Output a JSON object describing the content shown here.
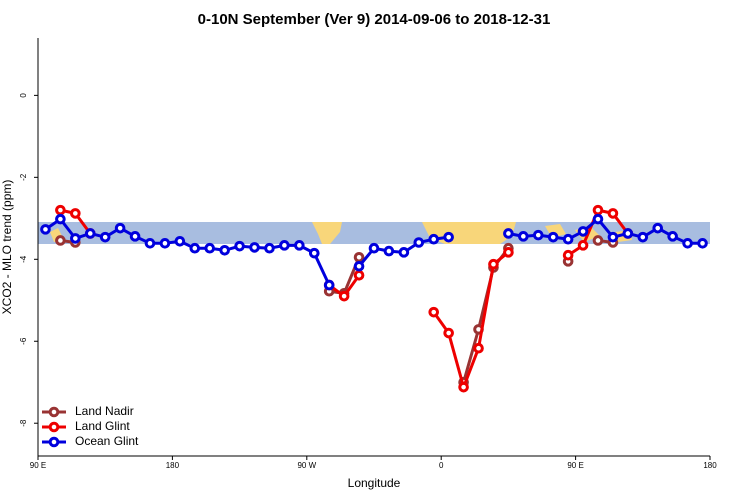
{
  "chart_data": {
    "type": "line",
    "title": "0-10N September (Ver 9)   2014-09-06 to 2018-12-31",
    "x_label": "Longitude",
    "y_label": "XCO2 - MLO trend (ppm)",
    "x": [
      95,
      105,
      115,
      125,
      135,
      145,
      155,
      165,
      175,
      185,
      195,
      205,
      215,
      225,
      235,
      245,
      255,
      265,
      275,
      285,
      295,
      305,
      315,
      325,
      335,
      345,
      355,
      365,
      375,
      385,
      395,
      405,
      415,
      425,
      435,
      445,
      455,
      465,
      475,
      485,
      495,
      505,
      515,
      525,
      535
    ],
    "xlim": [
      90,
      540
    ],
    "xticks": [
      {
        "value": 90,
        "label": "90 E"
      },
      {
        "value": 180,
        "label": "180"
      },
      {
        "value": 270,
        "label": "90 W"
      },
      {
        "value": 360,
        "label": "0"
      },
      {
        "value": 450,
        "label": "90 E"
      },
      {
        "value": 540,
        "label": "180"
      }
    ],
    "ylim": [
      -8.8,
      1.4
    ],
    "yticks": [
      0,
      -2,
      -4,
      -6,
      -8
    ],
    "legend": "bottom-left",
    "series": [
      {
        "name": "Land Nadir",
        "color": "#993333",
        "values": [
          null,
          -3.54,
          -3.59,
          null,
          null,
          null,
          null,
          null,
          null,
          null,
          null,
          null,
          null,
          null,
          null,
          null,
          null,
          null,
          null,
          -4.78,
          -4.83,
          -3.95,
          null,
          null,
          null,
          null,
          null,
          null,
          -7.0,
          -5.71,
          -4.2,
          -3.73,
          null,
          null,
          null,
          -4.05,
          null,
          -3.54,
          -3.59,
          null,
          null,
          null,
          null,
          null,
          null
        ]
      },
      {
        "name": "Land Glint",
        "color": "#ee0000",
        "values": [
          null,
          -2.8,
          -2.88,
          -3.37,
          null,
          null,
          null,
          null,
          null,
          null,
          null,
          null,
          null,
          null,
          null,
          null,
          null,
          null,
          null,
          -4.63,
          -4.9,
          -4.39,
          null,
          null,
          null,
          null,
          -5.29,
          -5.8,
          -7.12,
          -6.17,
          -4.12,
          -3.83,
          null,
          null,
          null,
          -3.9,
          -3.66,
          -2.8,
          -2.88,
          -3.37,
          null,
          null,
          null,
          null,
          null
        ]
      },
      {
        "name": "Ocean Glint",
        "color": "#0000dd",
        "values": [
          -3.27,
          -3.02,
          -3.49,
          -3.37,
          -3.46,
          -3.24,
          -3.44,
          -3.61,
          -3.61,
          -3.56,
          -3.73,
          -3.73,
          -3.78,
          -3.68,
          -3.71,
          -3.73,
          -3.66,
          -3.66,
          -3.85,
          -4.63,
          null,
          -4.17,
          -3.73,
          -3.8,
          -3.83,
          -3.59,
          -3.51,
          -3.46,
          null,
          null,
          null,
          -3.37,
          -3.44,
          -3.41,
          -3.46,
          -3.51,
          -3.32,
          -3.02,
          -3.46,
          -3.37,
          -3.46,
          -3.24,
          -3.44,
          -3.61,
          -3.61
        ]
      }
    ]
  }
}
